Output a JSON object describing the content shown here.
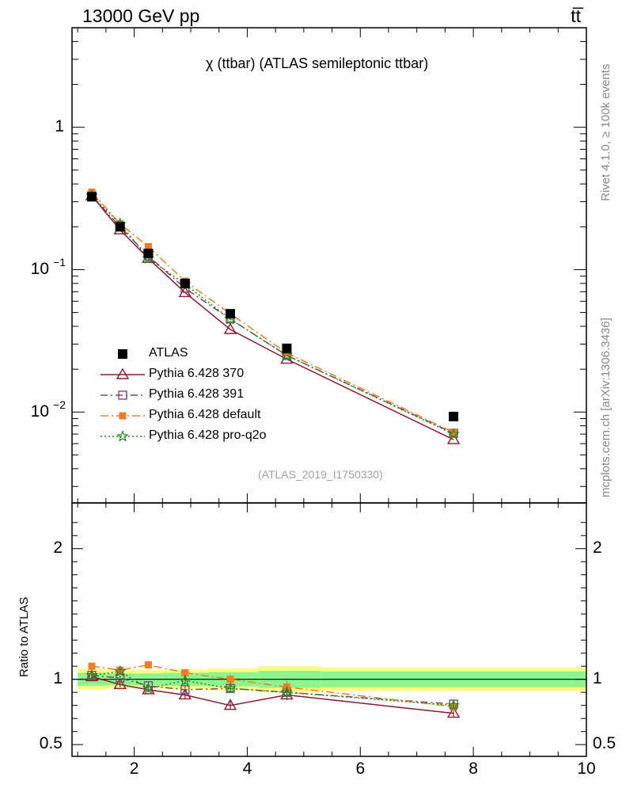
{
  "header": {
    "left_title": "13000 GeV pp",
    "right_title": "tt̅"
  },
  "side_text": {
    "rivet": "Rivet 4.1.0, ≥ 100k events",
    "mcplots": "mcplots.cern.ch [arXiv:1306.3436]"
  },
  "colors": {
    "atlas": "#000000",
    "p370": "#8b1a2e",
    "p391": "#7a4a6a",
    "pdefault": "#f07c28",
    "pq2o": "#1f8a1f",
    "band_inner": "#8ef58e",
    "band_outer": "#fdfd82"
  },
  "chart_data": {
    "type": "line",
    "title": "χ (ttbar) (ATLAS semileptonic ttbar)",
    "analysis_id": "(ATLAS_2019_I1750330)",
    "ratio_ylabel": "Ratio to ATLAS",
    "xlim": [
      0.9,
      10.0
    ],
    "ylim_main": [
      0.0023,
      5.0
    ],
    "ylim_ratio": [
      0.41,
      2.35
    ],
    "x_ticks": [
      2,
      4,
      6,
      8,
      10
    ],
    "main_y_ticks": [
      {
        "value": 1,
        "base": "1",
        "exp": ""
      },
      {
        "value": 0.1,
        "base": "10",
        "exp": "−1"
      },
      {
        "value": 0.01,
        "base": "10",
        "exp": "−2"
      }
    ],
    "ratio_y_ticks": [
      {
        "value": 0.5,
        "label": "0.5"
      },
      {
        "value": 1,
        "label": "1"
      },
      {
        "value": 2,
        "label": "2"
      }
    ],
    "x_bins": [
      {
        "lo": 1.0,
        "hi": 1.5,
        "x": 1.25
      },
      {
        "lo": 1.5,
        "hi": 2.0,
        "x": 1.75
      },
      {
        "lo": 2.0,
        "hi": 2.5,
        "x": 2.25
      },
      {
        "lo": 2.5,
        "hi": 3.3,
        "x": 2.9
      },
      {
        "lo": 3.3,
        "hi": 4.2,
        "x": 3.7
      },
      {
        "lo": 4.2,
        "hi": 5.3,
        "x": 4.7
      },
      {
        "lo": 5.3,
        "hi": 10.0,
        "x": 7.65
      }
    ],
    "band_outer": [
      0.08,
      0.07,
      0.07,
      0.075,
      0.085,
      0.1,
      0.09
    ],
    "band_inner": [
      0.05,
      0.045,
      0.045,
      0.05,
      0.055,
      0.065,
      0.06
    ],
    "data": {
      "name": "ATLAS",
      "values": [
        0.325,
        0.2,
        0.13,
        0.08,
        0.049,
        0.028,
        0.0093
      ]
    },
    "series": [
      {
        "key": "p370",
        "name": "Pythia 6.428 370",
        "marker": "triangle",
        "dash": "",
        "values": [
          0.33,
          0.19,
          0.12,
          0.069,
          0.038,
          0.0235,
          0.0064
        ],
        "ratio": [
          1.02,
          0.96,
          0.92,
          0.88,
          0.8,
          0.88,
          0.74
        ],
        "ratio_err": [
          0.02,
          0.02,
          0.02,
          0.03,
          0.03,
          0.04,
          0.03
        ]
      },
      {
        "key": "p391",
        "name": "Pythia 6.428 391",
        "marker": "square",
        "dash": "9,4,2,4",
        "values": [
          0.33,
          0.2,
          0.125,
          0.074,
          0.045,
          0.025,
          0.0071
        ],
        "ratio": [
          1.03,
          1.01,
          0.95,
          0.92,
          0.93,
          0.9,
          0.81
        ],
        "ratio_err": [
          0.02,
          0.02,
          0.02,
          0.03,
          0.03,
          0.04,
          0.03
        ]
      },
      {
        "key": "pdefault",
        "name": "Pythia 6.428 default",
        "marker": "filled-square",
        "dash": "10,4,2,4",
        "values": [
          0.35,
          0.21,
          0.145,
          0.083,
          0.049,
          0.026,
          0.0072
        ],
        "ratio": [
          1.1,
          1.07,
          1.11,
          1.05,
          1.0,
          0.94,
          0.79
        ],
        "ratio_err": [
          0.02,
          0.03,
          0.03,
          0.03,
          0.04,
          0.05,
          0.04
        ]
      },
      {
        "key": "pq2o",
        "name": "Pythia 6.428 pro-q2o",
        "marker": "star",
        "dash": "2,3",
        "values": [
          0.33,
          0.21,
          0.12,
          0.079,
          0.045,
          0.025,
          0.007
        ],
        "ratio": [
          1.03,
          1.06,
          0.93,
          0.99,
          0.93,
          0.9,
          0.8
        ],
        "ratio_err": [
          0.02,
          0.02,
          0.02,
          0.03,
          0.03,
          0.04,
          0.03
        ]
      }
    ]
  }
}
